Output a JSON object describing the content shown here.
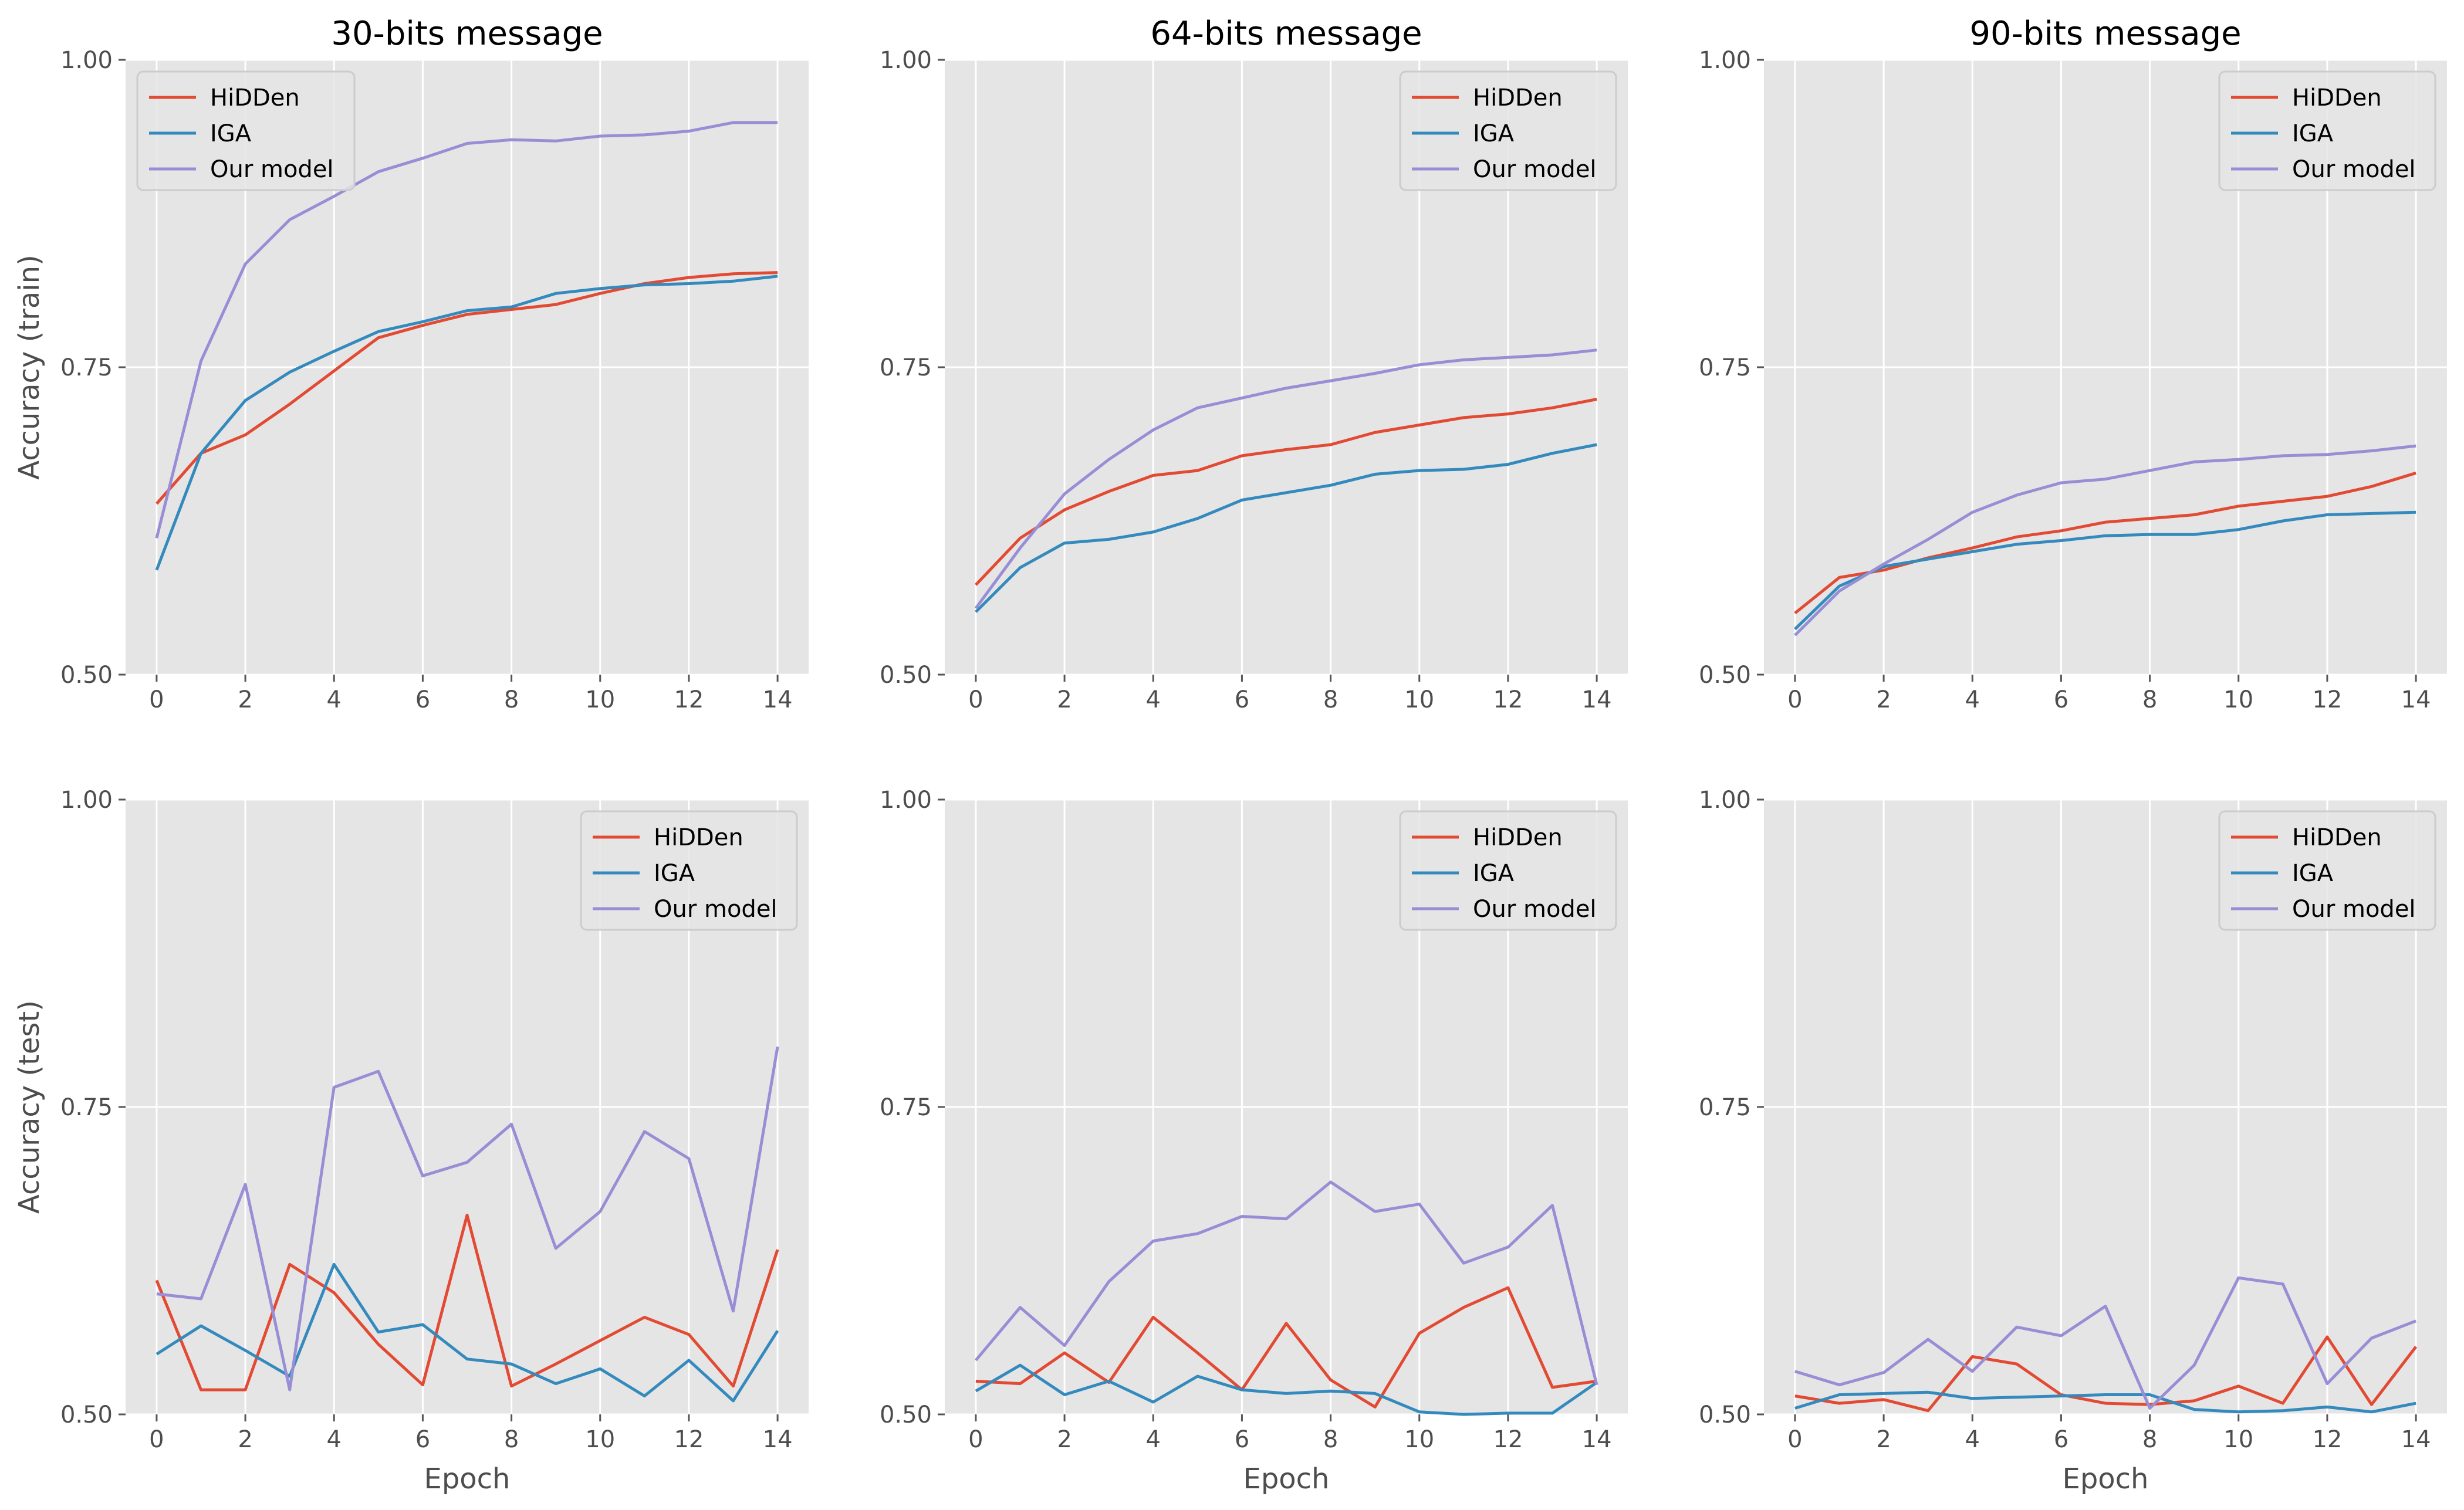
{
  "chart_data": [
    {
      "type": "line",
      "title": "30-bits message",
      "xlabel": "",
      "ylabel": "Accuracy (train)",
      "x": [
        0,
        1,
        2,
        3,
        4,
        5,
        6,
        7,
        8,
        9,
        10,
        11,
        12,
        13,
        14
      ],
      "xticks": [
        "0",
        "2",
        "4",
        "6",
        "8",
        "10",
        "12",
        "14"
      ],
      "yticks": [
        "0.50",
        "0.75",
        "1.00"
      ],
      "xlim": [
        -0.7,
        14.7
      ],
      "ylim": [
        0.5,
        1.0
      ],
      "legend": "top-left",
      "grid": true,
      "series": [
        {
          "name": "HiDDen",
          "color": "#E24A33",
          "values": [
            0.639,
            0.68,
            0.695,
            0.72,
            0.747,
            0.774,
            0.784,
            0.793,
            0.797,
            0.801,
            0.81,
            0.818,
            0.823,
            0.826,
            0.827
          ]
        },
        {
          "name": "IGA",
          "color": "#348ABD",
          "values": [
            0.585,
            0.68,
            0.723,
            0.746,
            0.763,
            0.779,
            0.787,
            0.796,
            0.799,
            0.81,
            0.814,
            0.817,
            0.818,
            0.82,
            0.824
          ]
        },
        {
          "name": "Our model",
          "color": "#988ED5",
          "values": [
            0.611,
            0.755,
            0.834,
            0.87,
            0.889,
            0.909,
            0.92,
            0.932,
            0.935,
            0.934,
            0.938,
            0.939,
            0.942,
            0.949,
            0.949
          ]
        }
      ]
    },
    {
      "type": "line",
      "title": "64-bits message",
      "xlabel": "",
      "ylabel": "",
      "x": [
        0,
        1,
        2,
        3,
        4,
        5,
        6,
        7,
        8,
        9,
        10,
        11,
        12,
        13,
        14
      ],
      "xticks": [
        "0",
        "2",
        "4",
        "6",
        "8",
        "10",
        "12",
        "14"
      ],
      "yticks": [
        "0.50",
        "0.75",
        "1.00"
      ],
      "xlim": [
        -0.7,
        14.7
      ],
      "ylim": [
        0.5,
        1.0
      ],
      "legend": "top-right",
      "grid": true,
      "series": [
        {
          "name": "HiDDen",
          "color": "#E24A33",
          "values": [
            0.573,
            0.611,
            0.634,
            0.649,
            0.662,
            0.666,
            0.678,
            0.683,
            0.687,
            0.697,
            0.703,
            0.709,
            0.712,
            0.717,
            0.724
          ]
        },
        {
          "name": "IGA",
          "color": "#348ABD",
          "values": [
            0.551,
            0.587,
            0.607,
            0.61,
            0.616,
            0.627,
            0.642,
            0.648,
            0.654,
            0.663,
            0.666,
            0.667,
            0.671,
            0.68,
            0.687
          ]
        },
        {
          "name": "Our model",
          "color": "#988ED5",
          "values": [
            0.554,
            0.603,
            0.647,
            0.675,
            0.699,
            0.717,
            0.725,
            0.733,
            0.739,
            0.745,
            0.752,
            0.756,
            0.758,
            0.76,
            0.764
          ]
        }
      ]
    },
    {
      "type": "line",
      "title": "90-bits message",
      "xlabel": "",
      "ylabel": "",
      "x": [
        0,
        1,
        2,
        3,
        4,
        5,
        6,
        7,
        8,
        9,
        10,
        11,
        12,
        13,
        14
      ],
      "xticks": [
        "0",
        "2",
        "4",
        "6",
        "8",
        "10",
        "12",
        "14"
      ],
      "yticks": [
        "0.50",
        "0.75",
        "1.00"
      ],
      "xlim": [
        -0.7,
        14.7
      ],
      "ylim": [
        0.5,
        1.0
      ],
      "legend": "top-right",
      "grid": true,
      "series": [
        {
          "name": "HiDDen",
          "color": "#E24A33",
          "values": [
            0.55,
            0.579,
            0.585,
            0.595,
            0.603,
            0.612,
            0.617,
            0.624,
            0.627,
            0.63,
            0.637,
            0.641,
            0.645,
            0.653,
            0.664
          ]
        },
        {
          "name": "IGA",
          "color": "#348ABD",
          "values": [
            0.537,
            0.572,
            0.588,
            0.594,
            0.6,
            0.606,
            0.609,
            0.613,
            0.614,
            0.614,
            0.618,
            0.625,
            0.63,
            0.631,
            0.632
          ]
        },
        {
          "name": "Our model",
          "color": "#988ED5",
          "values": [
            0.532,
            0.568,
            0.59,
            0.61,
            0.632,
            0.646,
            0.656,
            0.659,
            0.666,
            0.673,
            0.675,
            0.678,
            0.679,
            0.682,
            0.686
          ]
        }
      ]
    },
    {
      "type": "line",
      "title": "",
      "xlabel": "Epoch",
      "ylabel": "Accuracy (test)",
      "x": [
        0,
        1,
        2,
        3,
        4,
        5,
        6,
        7,
        8,
        9,
        10,
        11,
        12,
        13,
        14
      ],
      "xticks": [
        "0",
        "2",
        "4",
        "6",
        "8",
        "10",
        "12",
        "14"
      ],
      "yticks": [
        "0.50",
        "0.75",
        "1.00"
      ],
      "xlim": [
        -0.7,
        14.7
      ],
      "ylim": [
        0.5,
        1.0
      ],
      "legend": "top-right",
      "grid": true,
      "series": [
        {
          "name": "HiDDen",
          "color": "#E24A33",
          "values": [
            0.609,
            0.52,
            0.52,
            0.622,
            0.599,
            0.557,
            0.524,
            0.662,
            0.523,
            0.541,
            0.56,
            0.579,
            0.565,
            0.523,
            0.634
          ]
        },
        {
          "name": "IGA",
          "color": "#348ABD",
          "values": [
            0.549,
            0.572,
            0.552,
            0.531,
            0.622,
            0.567,
            0.573,
            0.545,
            0.541,
            0.525,
            0.537,
            0.515,
            0.544,
            0.511,
            0.568
          ]
        },
        {
          "name": "Our model",
          "color": "#988ED5",
          "values": [
            0.598,
            0.594,
            0.687,
            0.52,
            0.766,
            0.779,
            0.694,
            0.705,
            0.736,
            0.635,
            0.665,
            0.73,
            0.708,
            0.584,
            0.799
          ]
        }
      ]
    },
    {
      "type": "line",
      "title": "",
      "xlabel": "Epoch",
      "ylabel": "",
      "x": [
        0,
        1,
        2,
        3,
        4,
        5,
        6,
        7,
        8,
        9,
        10,
        11,
        12,
        13,
        14
      ],
      "xticks": [
        "0",
        "2",
        "4",
        "6",
        "8",
        "10",
        "12",
        "14"
      ],
      "yticks": [
        "0.50",
        "0.75",
        "1.00"
      ],
      "xlim": [
        -0.7,
        14.7
      ],
      "ylim": [
        0.5,
        1.0
      ],
      "legend": "top-right",
      "grid": true,
      "series": [
        {
          "name": "HiDDen",
          "color": "#E24A33",
          "values": [
            0.527,
            0.525,
            0.55,
            0.526,
            0.579,
            0.55,
            0.52,
            0.574,
            0.528,
            0.506,
            0.566,
            0.587,
            0.603,
            0.522,
            0.527
          ]
        },
        {
          "name": "IGA",
          "color": "#348ABD",
          "values": [
            0.519,
            0.54,
            0.516,
            0.527,
            0.51,
            0.531,
            0.52,
            0.517,
            0.519,
            0.517,
            0.502,
            0.5,
            0.501,
            0.501,
            0.526
          ]
        },
        {
          "name": "Our model",
          "color": "#988ED5",
          "values": [
            0.544,
            0.587,
            0.556,
            0.608,
            0.641,
            0.647,
            0.661,
            0.659,
            0.689,
            0.665,
            0.671,
            0.623,
            0.636,
            0.67,
            0.524
          ]
        }
      ]
    },
    {
      "type": "line",
      "title": "",
      "xlabel": "Epoch",
      "ylabel": "",
      "x": [
        0,
        1,
        2,
        3,
        4,
        5,
        6,
        7,
        8,
        9,
        10,
        11,
        12,
        13,
        14
      ],
      "xticks": [
        "0",
        "2",
        "4",
        "6",
        "8",
        "10",
        "12",
        "14"
      ],
      "yticks": [
        "0.50",
        "0.75",
        "1.00"
      ],
      "xlim": [
        -0.7,
        14.7
      ],
      "ylim": [
        0.5,
        1.0
      ],
      "legend": "top-right",
      "grid": true,
      "series": [
        {
          "name": "HiDDen",
          "color": "#E24A33",
          "values": [
            0.515,
            0.509,
            0.512,
            0.503,
            0.547,
            0.541,
            0.516,
            0.509,
            0.508,
            0.511,
            0.523,
            0.509,
            0.563,
            0.508,
            0.555
          ]
        },
        {
          "name": "IGA",
          "color": "#348ABD",
          "values": [
            0.505,
            0.516,
            0.517,
            0.518,
            0.513,
            0.514,
            0.515,
            0.516,
            0.516,
            0.504,
            0.502,
            0.503,
            0.506,
            0.502,
            0.509
          ]
        },
        {
          "name": "Our model",
          "color": "#988ED5",
          "values": [
            0.535,
            0.524,
            0.534,
            0.561,
            0.535,
            0.571,
            0.564,
            0.588,
            0.505,
            0.54,
            0.611,
            0.606,
            0.525,
            0.562,
            0.576
          ]
        }
      ]
    }
  ]
}
